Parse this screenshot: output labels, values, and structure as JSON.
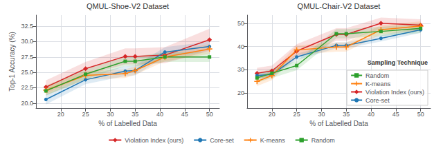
{
  "chart_data": [
    {
      "type": "line",
      "title": "QMUL-Shoe-V2 Dataset",
      "xlabel": "% of Labelled Data",
      "ylabel": "Top-1 Accuracy (%)",
      "x": [
        17,
        25,
        33,
        35,
        41,
        50
      ],
      "series": [
        {
          "name": "Violation Index (ours)",
          "color": "#d62728",
          "marker": "diamond",
          "line_style": "solid",
          "values": [
            22.6,
            25.6,
            27.6,
            27.6,
            27.8,
            30.3
          ],
          "low": [
            21.5,
            24.5,
            26.3,
            26.3,
            26.5,
            28.5
          ],
          "high": [
            23.7,
            26.7,
            28.9,
            28.9,
            29.1,
            32.1
          ]
        },
        {
          "name": "Core-set",
          "color": "#1f77b4",
          "marker": "circle",
          "line_style": "solid",
          "values": [
            20.6,
            23.8,
            25.2,
            25.3,
            28.3,
            29.2
          ],
          "low": [
            19.8,
            23.1,
            24.4,
            24.5,
            27.5,
            28.4
          ],
          "high": [
            21.4,
            24.5,
            26.0,
            26.1,
            29.1,
            30.0
          ]
        },
        {
          "name": "K-means",
          "color": "#ff7f0e",
          "marker": "plus",
          "line_style": "solid",
          "values": [
            22.1,
            24.5,
            24.8,
            25.3,
            27.5,
            28.8
          ],
          "low": [
            21.3,
            23.8,
            24.1,
            24.6,
            26.8,
            28.0
          ],
          "high": [
            22.9,
            25.2,
            25.5,
            26.0,
            28.2,
            29.6
          ]
        },
        {
          "name": "Random",
          "color": "#2ca02c",
          "marker": "square",
          "line_style": "solid",
          "values": [
            22.0,
            24.7,
            26.8,
            26.8,
            27.5,
            27.5
          ],
          "low": [
            21.2,
            23.9,
            26.0,
            26.0,
            26.7,
            26.7
          ],
          "high": [
            22.8,
            25.5,
            27.6,
            27.6,
            28.3,
            28.3
          ]
        }
      ],
      "xlim": [
        15,
        52
      ],
      "xticks": [
        20,
        25,
        30,
        35,
        40,
        45,
        50
      ],
      "ylim": [
        19.2,
        34.3
      ],
      "yticks": [
        {
          "value": 20,
          "label": "20.0"
        },
        22.5,
        {
          "value": 25,
          "label": "25.0"
        },
        27.5,
        {
          "value": 30,
          "label": "30.0"
        },
        32.5
      ],
      "grid": true
    },
    {
      "type": "line",
      "title": "QMUL-Chair-V2 Dataset",
      "xlabel": "% of Labelled Data",
      "x": [
        17,
        20,
        25,
        33,
        35,
        42,
        50
      ],
      "series": [
        {
          "name": "Violation Index (ours)",
          "color": "#d62728",
          "marker": "diamond",
          "line_style": "solid",
          "values": [
            28.5,
            29.5,
            38.0,
            45.2,
            45.2,
            50.0,
            49.2
          ],
          "low": [
            26.2,
            27.2,
            35.0,
            42.5,
            42.5,
            47.5,
            46.7
          ],
          "high": [
            30.8,
            31.8,
            41.0,
            47.9,
            47.9,
            52.5,
            51.7
          ]
        },
        {
          "name": "Core-set",
          "color": "#1f77b4",
          "marker": "circle",
          "line_style": "solid",
          "values": [
            27.5,
            28.0,
            35.5,
            40.5,
            40.5,
            43.5,
            47.2
          ],
          "low": [
            26.3,
            26.8,
            34.2,
            39.2,
            39.2,
            42.2,
            45.9
          ],
          "high": [
            28.7,
            29.2,
            36.8,
            41.8,
            41.8,
            44.8,
            48.5
          ]
        },
        {
          "name": "K-means",
          "color": "#ff7f0e",
          "marker": "plus",
          "line_style": "solid",
          "values": [
            25.0,
            27.5,
            38.5,
            39.8,
            39.8,
            47.2,
            48.8
          ],
          "low": [
            23.0,
            25.5,
            36.5,
            37.8,
            37.8,
            45.2,
            46.8
          ],
          "high": [
            27.0,
            29.5,
            40.5,
            41.8,
            41.8,
            49.2,
            50.8
          ]
        },
        {
          "name": "Random",
          "color": "#2ca02c",
          "marker": "square",
          "line_style": "solid",
          "values": [
            26.5,
            28.5,
            31.8,
            45.5,
            45.5,
            46.5,
            47.8
          ],
          "low": [
            24.5,
            26.5,
            29.8,
            43.5,
            43.5,
            44.5,
            45.8
          ],
          "high": [
            28.5,
            30.5,
            33.8,
            47.5,
            47.5,
            48.5,
            49.8
          ]
        }
      ],
      "xlim": [
        15,
        52
      ],
      "xticks": [
        20,
        25,
        30,
        35,
        40,
        45,
        50
      ],
      "ylim": [
        13.5,
        53.5
      ],
      "yticks": [
        20,
        30,
        40,
        50
      ],
      "grid": true,
      "legend": "lower right",
      "legend_title": "Sampling Technique",
      "legend_entries": [
        "Random",
        "K-means",
        "Violation Index (ours)",
        "Core-set"
      ]
    }
  ],
  "legend": "lower center"
}
